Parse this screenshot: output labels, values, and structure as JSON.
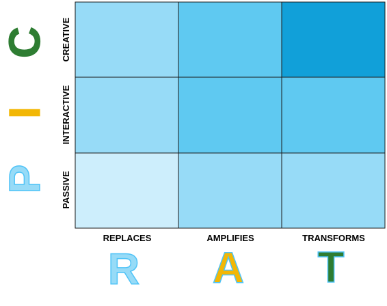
{
  "grid": {
    "rows": [
      "CREATIVE",
      "INTERACTIVE",
      "PASSIVE"
    ],
    "columns": [
      "REPLACES",
      "AMPLIFIES",
      "TRANSFORMS"
    ],
    "cell_colors": [
      [
        "#97dbf7",
        "#5fc9f1",
        "#11a0d9"
      ],
      [
        "#97dbf7",
        "#5fc9f1",
        "#5fc9f1"
      ],
      [
        "#cdeefc",
        "#97dbf7",
        "#97dbf7"
      ]
    ]
  },
  "pic_letters": [
    {
      "letter": "C",
      "fill": "#2e7d32",
      "stroke": "#2e7d32"
    },
    {
      "letter": "I",
      "fill": "#f2b705",
      "stroke": "#f2b705"
    },
    {
      "letter": "P",
      "fill": "#97dbf7",
      "stroke": "#4fc3f7"
    }
  ],
  "rat_letters": [
    {
      "letter": "R",
      "fill": "#97dbf7",
      "stroke": "#4fc3f7"
    },
    {
      "letter": "A",
      "fill": "#f2b705",
      "stroke": "#4fc3f7"
    },
    {
      "letter": "T",
      "fill": "#2e7d32",
      "stroke": "#4fc3f7"
    }
  ]
}
